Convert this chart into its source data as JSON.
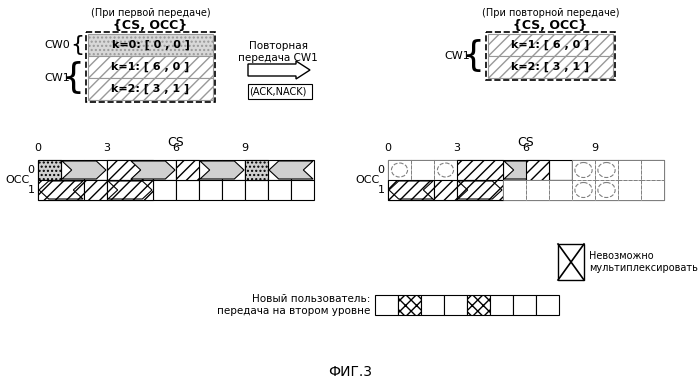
{
  "title": "ФИГ.3",
  "bg_color": "#ffffff",
  "left_top_note": "(При первой передаче)",
  "right_top_note": "(При повторной передаче)",
  "left_cs_occ_title": "{CS, OCC}",
  "right_cs_occ_title": "{CS, OCC}",
  "cw0_label": "CW0",
  "cw1_label": "CW1",
  "left_cw0_text": "k=0: [ 0 , 0 ]",
  "left_cw1_text1": "k=1: [ 6 , 0 ]",
  "left_cw1_text2": "k=2: [ 3 , 1 ]",
  "right_cw1_text1": "k=1: [ 6 , 0 ]",
  "right_cw1_text2": "k=2: [ 3 , 1 ]",
  "arrow_label": "Повторная\nпередача CW1",
  "ack_label": "(ACK,NACK)",
  "cs_label": "CS",
  "occ_label": "OCC",
  "cs_ticks": [
    0,
    3,
    6,
    9
  ],
  "new_user_label": "Новый пользователь:\nпередача на втором уровне",
  "no_multiplex_label": "Невозможно\nмультиплексировать"
}
